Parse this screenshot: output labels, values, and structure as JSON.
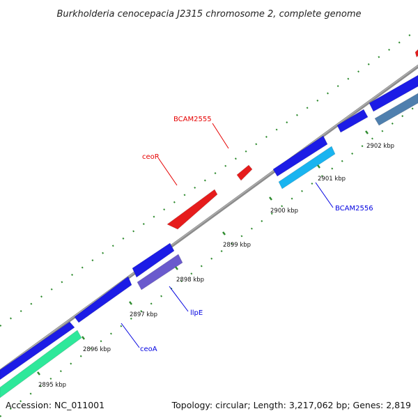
{
  "title": "Burkholderia cenocepacia J2315 chromosome 2, complete genome",
  "footer": {
    "accession": "Accession: NC_011001",
    "summary": "Topology: circular; Length: 3,217,062 bp; Genes: 2,819"
  },
  "colors": {
    "backbone": "#8c8c8c",
    "tick": "#2e8b2e",
    "cds_dark_blue": "#1c1ce6",
    "cds_red": "#e61c1c",
    "cds_cyan": "#19b4f0",
    "cds_purple": "#6a5acd",
    "cds_steel": "#4f7fae",
    "cds_green": "#2ee89a",
    "label_red": "#e60000",
    "label_blue": "#0000e0"
  },
  "position_ticks": [
    {
      "label": "2895 kbp"
    },
    {
      "label": "2896 kbp"
    },
    {
      "label": "2897 kbp"
    },
    {
      "label": "2898 kbp"
    },
    {
      "label": "2899 kbp"
    },
    {
      "label": "2900 kbp"
    },
    {
      "label": "2901 kbp"
    },
    {
      "label": "2902 kbp"
    }
  ],
  "gene_labels": [
    {
      "name": "BCAM2555",
      "color": "label_red"
    },
    {
      "name": "ceoR",
      "color": "label_red"
    },
    {
      "name": "BCAM2556",
      "color": "label_blue"
    },
    {
      "name": "llpE",
      "color": "label_blue"
    },
    {
      "name": "ceoA",
      "color": "label_blue"
    }
  ]
}
